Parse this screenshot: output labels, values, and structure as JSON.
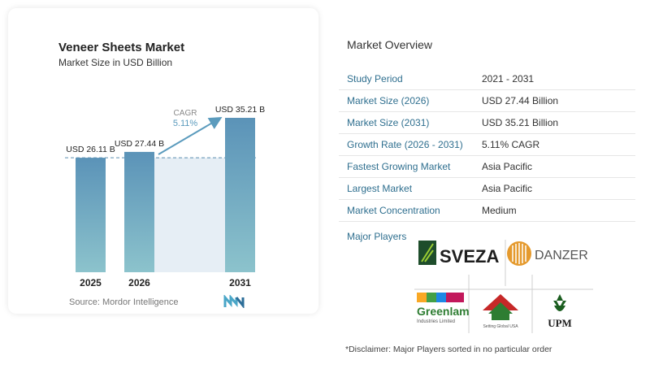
{
  "chart_card": {
    "title": "Veneer Sheets Market",
    "subtitle": "Market Size in USD Billion",
    "source": "Source:  Mordor Intelligence",
    "cagr_label": "CAGR",
    "cagr_value": "5.11%"
  },
  "chart_data": {
    "type": "bar",
    "categories": [
      "2025",
      "2026",
      "2031"
    ],
    "values": [
      26.11,
      27.44,
      35.21
    ],
    "data_labels": [
      "USD 26.11 B",
      "USD 27.44 B",
      "USD 35.21 B"
    ],
    "colors": {
      "bar_top": "#5b93b8",
      "bar_bottom": "#8cc3cc",
      "band": "#e6eef5",
      "arrow": "#5b9bbd",
      "reference_line": "#5b8fb0"
    }
  },
  "overview": {
    "title": "Market Overview",
    "rows": [
      {
        "key": "Study Period",
        "value": "2021 - 2031"
      },
      {
        "key": "Market Size (2026)",
        "value": "USD 27.44 Billion"
      },
      {
        "key": "Market Size (2031)",
        "value": "USD 35.21 Billion"
      },
      {
        "key": "Growth Rate (2026 - 2031)",
        "value": "5.11% CAGR"
      },
      {
        "key": "Fastest Growing Market",
        "value": "Asia Pacific"
      },
      {
        "key": "Largest Market",
        "value": "Asia Pacific"
      },
      {
        "key": "Market Concentration",
        "value": "Medium"
      }
    ]
  },
  "players": {
    "label": "Major Players",
    "logos": {
      "sveza": "SVEZA",
      "danzer": "DANZER",
      "greenlam": "Greenlam",
      "greenlam_sub": "Industries Limited",
      "century": "Setting Global USA",
      "upm": "UPM"
    }
  },
  "disclaimer": "*Disclaimer: Major Players sorted in no particular order"
}
